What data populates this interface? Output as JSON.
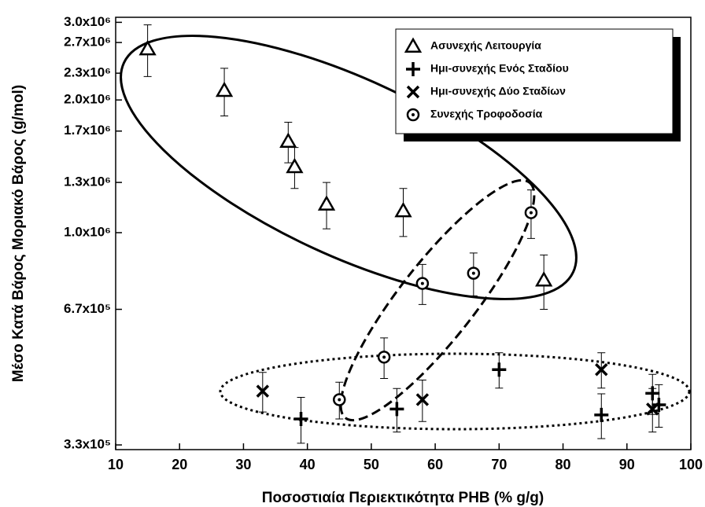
{
  "chart_data": {
    "type": "scatter",
    "xlabel": "Ποσοστιαία Περιεκτικότητα PHB (% g/g)",
    "ylabel": "Μέσο Κατά Βάρος Μοριακό Βάρος (g/mol)",
    "xlim": [
      10,
      100
    ],
    "xticks": [
      10,
      20,
      30,
      40,
      50,
      60,
      70,
      80,
      90,
      100
    ],
    "ylim": [
      322000,
      3080000
    ],
    "ylog": true,
    "yticks": [
      {
        "value": 330000,
        "label": "3.3x10⁵"
      },
      {
        "value": 670000,
        "label": "6.7x10⁵"
      },
      {
        "value": 1000000,
        "label": "1.0x10⁶"
      },
      {
        "value": 1300000,
        "label": "1.3x10⁶"
      },
      {
        "value": 1700000,
        "label": "1.7x10⁶"
      },
      {
        "value": 2000000,
        "label": "2.0x10⁶"
      },
      {
        "value": 2300000,
        "label": "2.3x10⁶"
      },
      {
        "value": 2700000,
        "label": "2.7x10⁶"
      },
      {
        "value": 3000000,
        "label": "3.0x10⁶"
      }
    ],
    "legend": "upper right",
    "series": [
      {
        "name": "Ασυνεχής Λειτουργία",
        "marker": "triangle",
        "color": "#000000",
        "x": [
          15,
          27,
          37,
          38,
          43,
          55,
          77
        ],
        "values": [
          2610000,
          2100000,
          1610000,
          1410000,
          1160000,
          1120000,
          780000
        ],
        "errors": [
          350000,
          260000,
          170000,
          150000,
          140000,
          140000,
          110000
        ]
      },
      {
        "name": "Ημι-συνεχής Ενός Σταδίου",
        "marker": "plus",
        "color": "#000000",
        "x": [
          39,
          54,
          70,
          86,
          94,
          95
        ],
        "values": [
          378000,
          398000,
          489000,
          386000,
          432000,
          407000
        ],
        "errors": [
          45000,
          45000,
          45000,
          45000,
          45000,
          45000
        ]
      },
      {
        "name": "Ημι-συνεχής Δύο Σταδίων",
        "marker": "cross",
        "color": "#000000",
        "x": [
          33,
          58,
          86,
          94
        ],
        "values": [
          437000,
          418000,
          489000,
          398000
        ],
        "errors": [
          45000,
          45000,
          45000,
          45000
        ]
      },
      {
        "name": "Συνεχής Τροφοδοσία",
        "marker": "circle",
        "color": "#000000",
        "x": [
          45,
          52,
          58,
          66,
          75
        ],
        "values": [
          418000,
          522000,
          767000,
          809000,
          1110000
        ],
        "errors": [
          40000,
          55000,
          80000,
          90000,
          140000
        ]
      }
    ]
  }
}
